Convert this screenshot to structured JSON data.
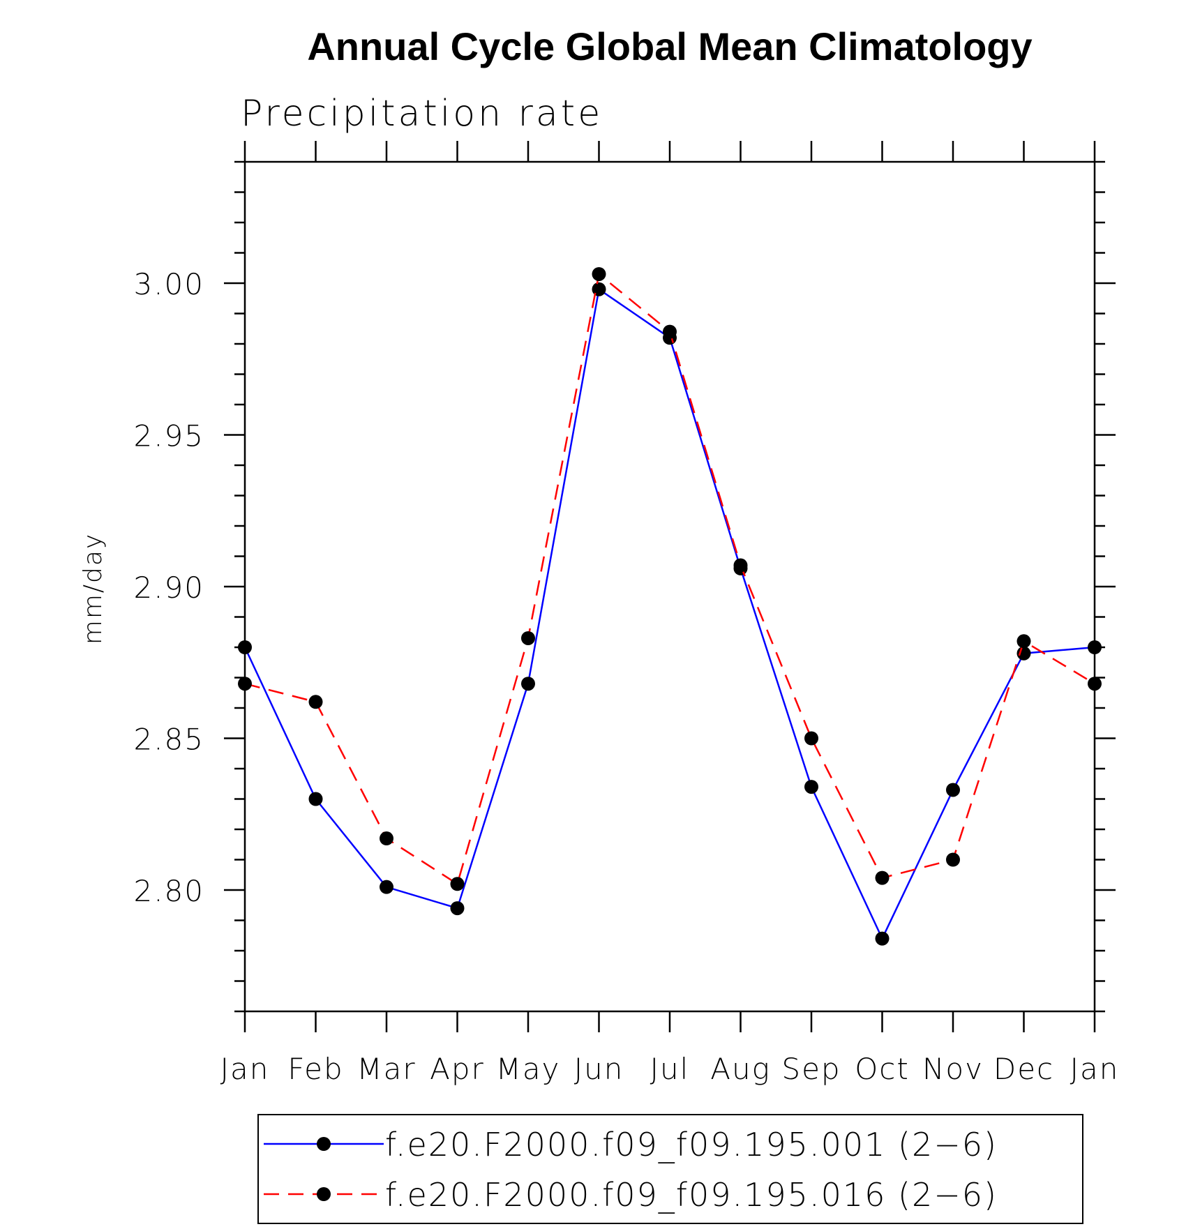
{
  "chart_data": {
    "type": "line",
    "title": "Annual Cycle Global Mean Climatology",
    "subtitle": "Precipitation rate",
    "xlabel": "",
    "ylabel": "mm/day",
    "categories": [
      "Jan",
      "Feb",
      "Mar",
      "Apr",
      "May",
      "Jun",
      "Jul",
      "Aug",
      "Sep",
      "Oct",
      "Nov",
      "Dec",
      "Jan"
    ],
    "ylim": [
      2.76,
      3.04
    ],
    "yticks": [
      "2.80",
      "2.85",
      "2.90",
      "2.95",
      "3.00"
    ],
    "grid": false,
    "legend_position": "bottom",
    "series": [
      {
        "name": "f.e20.F2000.f09_f09.195.001 (2−6)",
        "color": "#0000ff",
        "line_style": "solid",
        "marker": "filled-circle",
        "values": [
          2.88,
          2.83,
          2.801,
          2.794,
          2.868,
          2.998,
          2.982,
          2.906,
          2.834,
          2.784,
          2.833,
          2.878,
          2.88
        ]
      },
      {
        "name": "f.e20.F2000.f09_f09.195.016 (2−6)",
        "color": "#ff0000",
        "line_style": "dashed",
        "marker": "filled-circle",
        "values": [
          2.868,
          2.862,
          2.817,
          2.802,
          2.883,
          3.003,
          2.984,
          2.907,
          2.85,
          2.804,
          2.81,
          2.882,
          2.868
        ]
      }
    ]
  }
}
